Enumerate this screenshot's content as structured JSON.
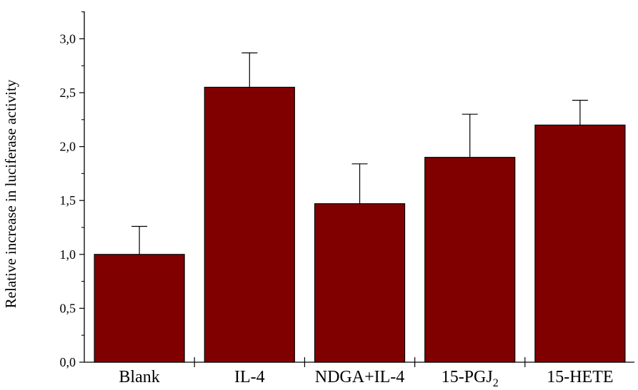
{
  "chart_data": {
    "type": "bar",
    "title": "",
    "xlabel": "",
    "ylabel": "Relative increase in luciferase activity",
    "categories": [
      "Blank",
      "IL-4",
      "NDGA+IL-4",
      "15-PGJ2",
      "15-HETE"
    ],
    "category_labels": [
      {
        "main": "Blank",
        "sub": ""
      },
      {
        "main": "IL-4",
        "sub": ""
      },
      {
        "main": "NDGA+IL-4",
        "sub": ""
      },
      {
        "main": "15-PGJ",
        "sub": "2"
      },
      {
        "main": "15-HETE",
        "sub": ""
      }
    ],
    "values": [
      1.0,
      2.55,
      1.47,
      1.9,
      2.2
    ],
    "errors": [
      0.26,
      0.32,
      0.37,
      0.4,
      0.23
    ],
    "error_bar_style": "upper only",
    "ylim": [
      0,
      3.25
    ],
    "yticks": [
      0.0,
      0.5,
      1.0,
      1.5,
      2.0,
      2.5,
      3.0
    ],
    "ytick_labels": [
      "0,0",
      "0,5",
      "1,0",
      "1,5",
      "2,0",
      "2,5",
      "3,0"
    ],
    "minor_yticks": true,
    "grid": false,
    "legend": "none",
    "bar_color": "#800000",
    "bar_edge_color": "#000000",
    "axis_color": "#000000"
  }
}
